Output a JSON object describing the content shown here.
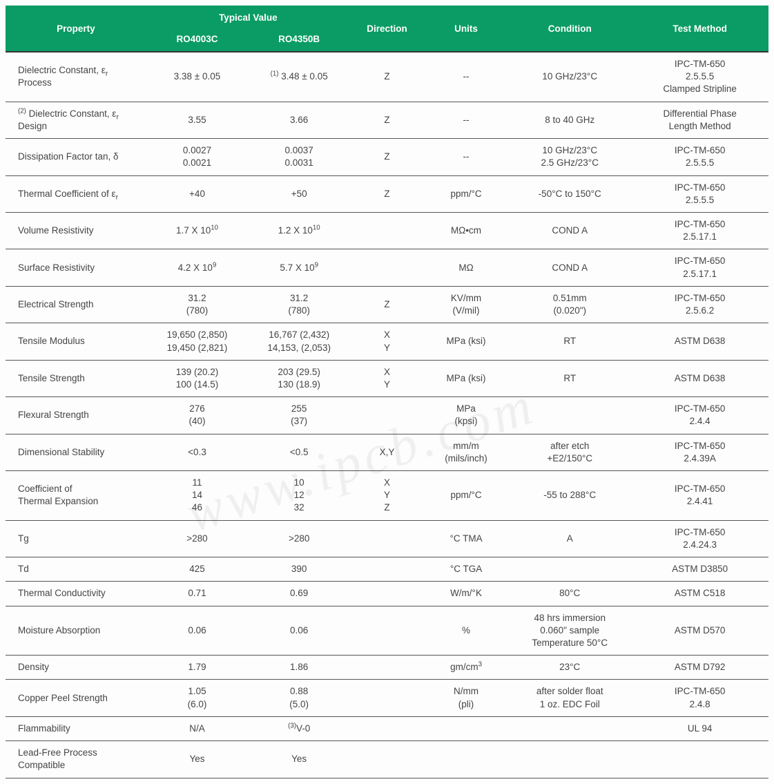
{
  "header": {
    "property": "Property",
    "typical_value": "Typical Value",
    "sub1": "RO4003C",
    "sub2": "RO4350B",
    "direction": "Direction",
    "units": "Units",
    "condition": "Condition",
    "test_method": "Test Method"
  },
  "colors": {
    "header_bg": "#0a9c64",
    "header_fg": "#ffffff",
    "row_border": "#555555",
    "text": "#444444"
  },
  "rows": [
    {
      "property_html": "Dielectric Constant, ε<sub>r</sub><br>Process",
      "v1": "3.38 ± 0.05",
      "v2_html": "<sup>(1)</sup> 3.48 ± 0.05",
      "dir": "Z",
      "units": "--",
      "cond": "10 GHz/23°C",
      "test_html": "IPC-TM-650<br>2.5.5.5<br>Clamped Stripline"
    },
    {
      "property_html": "<sup>(2)</sup> Dielectric Constant, ε<sub>r</sub><br>Design",
      "v1": "3.55",
      "v2": "3.66",
      "dir": "Z",
      "units": "--",
      "cond": "8 to 40 GHz",
      "test_html": "Differential Phase<br>Length Method"
    },
    {
      "property_html": "Dissipation Factor tan, δ",
      "v1_html": "0.0027<br>0.0021",
      "v2_html": "0.0037<br>0.0031",
      "dir": "Z",
      "units": "--",
      "cond_html": "10 GHz/23°C<br>2.5 GHz/23°C",
      "test_html": "IPC-TM-650<br>2.5.5.5"
    },
    {
      "property_html": "Thermal Coefficient of ε<sub>r</sub>",
      "v1": "+40",
      "v2": "+50",
      "dir": "Z",
      "units": "ppm/°C",
      "cond": "-50°C to 150°C",
      "test_html": "IPC-TM-650<br>2.5.5.5"
    },
    {
      "property": "Volume Resistivity",
      "v1_html": "1.7 X 10<sup>10</sup>",
      "v2_html": "1.2 X 10<sup>10</sup>",
      "dir": "",
      "units": "MΩ•cm",
      "cond": "COND A",
      "test_html": "IPC-TM-650<br>2.5.17.1"
    },
    {
      "property": "Surface Resistivity",
      "v1_html": "4.2 X 10<sup>9</sup>",
      "v2_html": "5.7 X 10<sup>9</sup>",
      "dir": "",
      "units": "MΩ",
      "cond": "COND A",
      "test_html": "IPC-TM-650<br>2.5.17.1"
    },
    {
      "property": "Electrical Strength",
      "v1_html": "31.2<br>(780)",
      "v2_html": "31.2<br>(780)",
      "dir": "Z",
      "units_html": "KV/mm<br>(V/mil)",
      "cond_html": "0.51mm<br>(0.020\")",
      "test_html": "IPC-TM-650<br>2.5.6.2"
    },
    {
      "property": "Tensile Modulus",
      "v1_html": "19,650 (2,850)<br>19,450 (2,821)",
      "v2_html": "16,767 (2,432)<br>14,153, (2,053)",
      "dir_html": "X<br>Y",
      "units": "MPa (ksi)",
      "cond": "RT",
      "test": "ASTM D638"
    },
    {
      "property": "Tensile Strength",
      "v1_html": "139 (20.2)<br>100 (14.5)",
      "v2_html": "203 (29.5)<br>130 (18.9)",
      "dir_html": "X<br>Y",
      "units": "MPa (ksi)",
      "cond": "RT",
      "test": "ASTM D638"
    },
    {
      "property": "Flexural Strength",
      "v1_html": "276<br>(40)",
      "v2_html": "255<br>(37)",
      "dir": "",
      "units_html": "MPa<br>(kpsi)",
      "cond": "",
      "test_html": "IPC-TM-650<br>2.4.4"
    },
    {
      "property": "Dimensional Stability",
      "v1": "<0.3",
      "v2": "<0.5",
      "dir": "X,Y",
      "units_html": "mm/m<br>(mils/inch)",
      "cond_html": "after etch<br>+E2/150°C",
      "test_html": "IPC-TM-650<br>2.4.39A"
    },
    {
      "property_html": "Coefficient of<br>Thermal Expansion",
      "v1_html": "11<br>14<br>46",
      "v2_html": "10<br>12<br>32",
      "dir_html": "X<br>Y<br>Z",
      "units": "ppm/°C",
      "cond": "-55 to 288°C",
      "test_html": "IPC-TM-650<br>2.4.41"
    },
    {
      "property": "Tg",
      "v1": ">280",
      "v2": ">280",
      "dir": "",
      "units": "°C TMA",
      "cond": "A",
      "test_html": "IPC-TM-650<br>2.4.24.3"
    },
    {
      "property": "Td",
      "v1": "425",
      "v2": "390",
      "dir": "",
      "units": "°C TGA",
      "cond": "",
      "test": "ASTM D3850"
    },
    {
      "property": "Thermal Conductivity",
      "v1": "0.71",
      "v2": "0.69",
      "dir": "",
      "units": "W/m/°K",
      "cond": "80°C",
      "test": "ASTM C518"
    },
    {
      "property": "Moisture Absorption",
      "v1": "0.06",
      "v2": "0.06",
      "dir": "",
      "units": "%",
      "cond_html": "48 hrs immersion<br>0.060\" sample<br>Temperature 50°C",
      "test": "ASTM D570"
    },
    {
      "property": "Density",
      "v1": "1.79",
      "v2": "1.86",
      "dir": "",
      "units_html": "gm/cm<sup>3</sup>",
      "cond": "23°C",
      "test": "ASTM D792"
    },
    {
      "property": "Copper Peel Strength",
      "v1_html": "1.05<br>(6.0)",
      "v2_html": "0.88<br>(5.0)",
      "dir": "",
      "units_html": "N/mm<br>(pli)",
      "cond_html": "after solder float<br>1 oz. EDC Foil",
      "test_html": "IPC-TM-650<br>2.4.8"
    },
    {
      "property": "Flammability",
      "v1": "N/A",
      "v2_html": "<sup>(3)</sup>V-0",
      "dir": "",
      "units": "",
      "cond": "",
      "test": "UL 94"
    },
    {
      "property_html": "Lead-Free Process<br>Compatible",
      "v1": "Yes",
      "v2": "Yes",
      "dir": "",
      "units": "",
      "cond": "",
      "test": ""
    }
  ],
  "watermark": "www.ipcb.com"
}
